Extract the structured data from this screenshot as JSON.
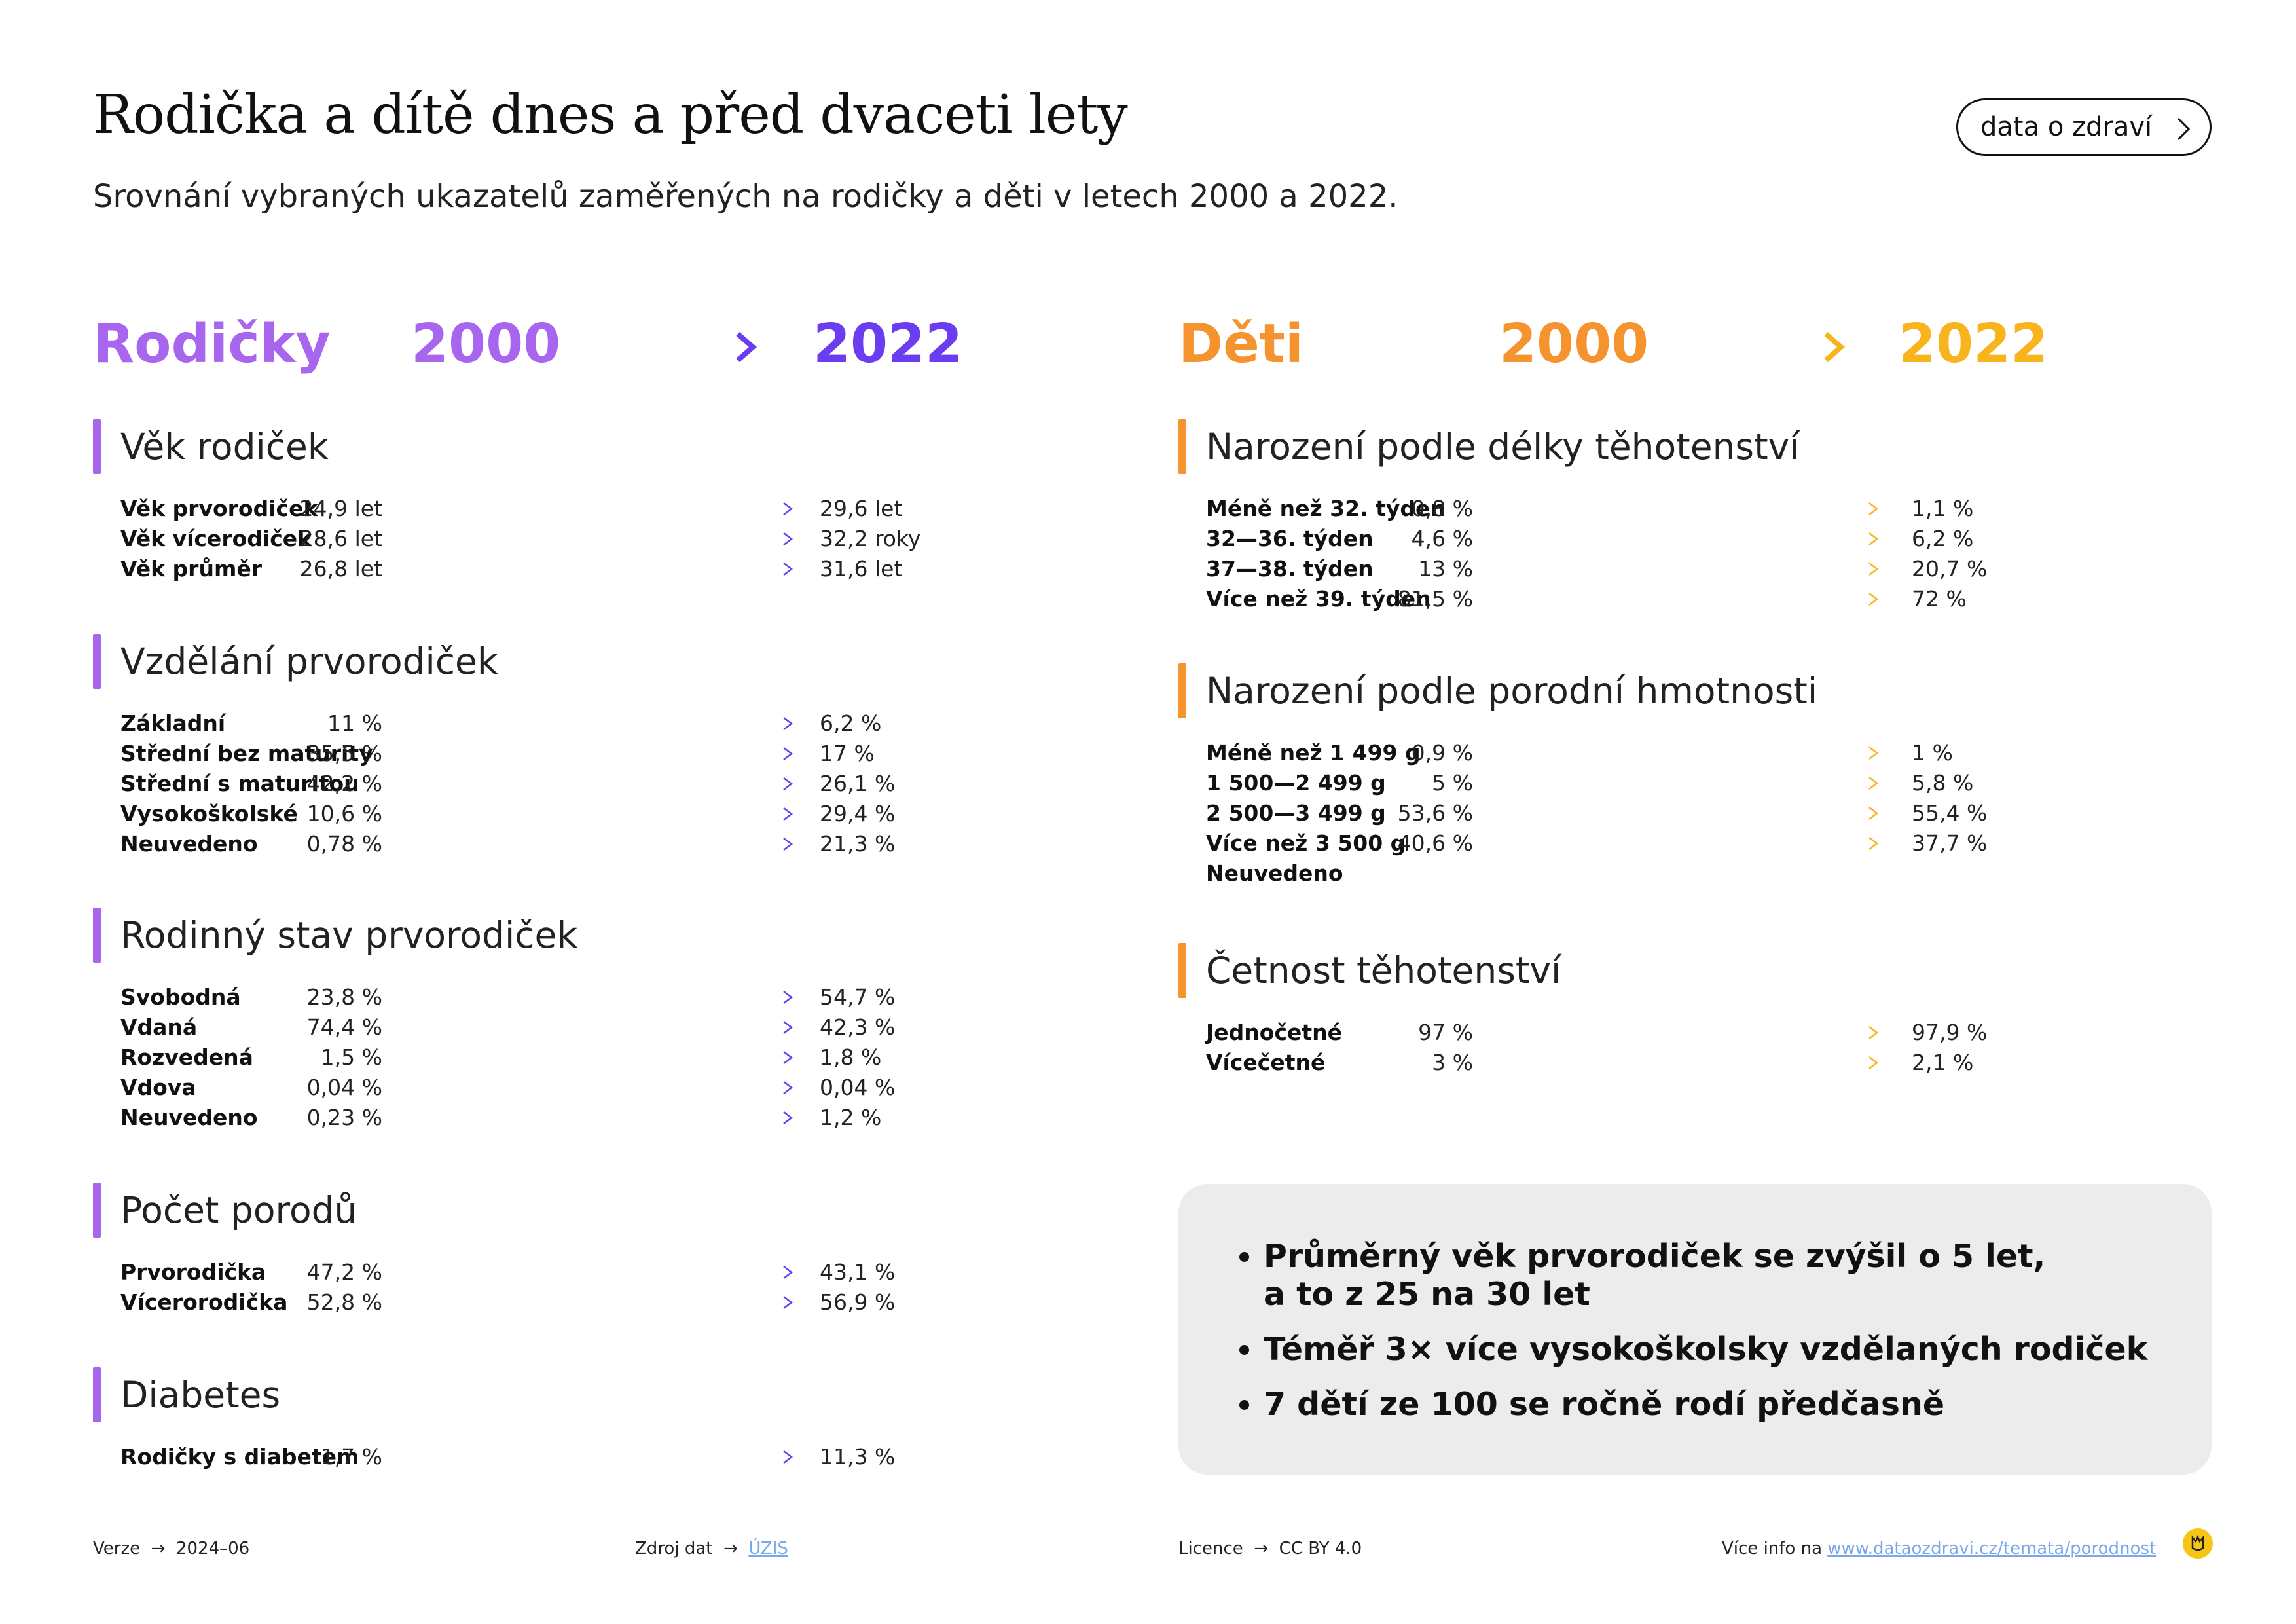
{
  "header": {
    "title": "Rodička a dítě dnes a před dvaceti lety",
    "subtitle": "Srovnání vybraných ukazatelů zaměřených na rodičky a děti v letech 2000 a 2022.",
    "button_label": "data o zdraví"
  },
  "colors": {
    "purple_light": "#a866ef",
    "purple_dark": "#6a3df0",
    "orange": "#f5932f",
    "orange_light": "#f8b41c",
    "box_bg": "#ececec"
  },
  "left_column": {
    "heading": "Rodičky",
    "year_from": "2000",
    "year_to": "2022",
    "sections": [
      {
        "title": "Věk rodiček",
        "rows": [
          {
            "label": "Věk prvorodiček",
            "v2000": "24,9 let",
            "v2022": "29,6 let"
          },
          {
            "label": "Věk vícerodiček",
            "v2000": "28,6 let",
            "v2022": "32,2 roky"
          },
          {
            "label": "Věk průměr",
            "v2000": "26,8 let",
            "v2022": "31,6 let"
          }
        ]
      },
      {
        "title": "Vzdělání prvorodiček",
        "rows": [
          {
            "label": "Základní",
            "v2000": "11 %",
            "v2022": "6,2 %"
          },
          {
            "label": "Střední bez maturity",
            "v2000": "35,5 %",
            "v2022": "17 %"
          },
          {
            "label": "Střední s maturitou",
            "v2000": "42,2 %",
            "v2022": "26,1 %"
          },
          {
            "label": "Vysokoškolské",
            "v2000": "10,6 %",
            "v2022": "29,4 %"
          },
          {
            "label": "Neuvedeno",
            "v2000": "0,78 %",
            "v2022": "21,3 %"
          }
        ]
      },
      {
        "title": "Rodinný stav prvorodiček",
        "rows": [
          {
            "label": "Svobodná",
            "v2000": "23,8 %",
            "v2022": "54,7 %"
          },
          {
            "label": "Vdaná",
            "v2000": "74,4 %",
            "v2022": "42,3 %"
          },
          {
            "label": "Rozvedená",
            "v2000": "1,5 %",
            "v2022": "1,8 %"
          },
          {
            "label": "Vdova",
            "v2000": "0,04 %",
            "v2022": "0,04 %"
          },
          {
            "label": "Neuvedeno",
            "v2000": "0,23 %",
            "v2022": "1,2 %"
          }
        ]
      },
      {
        "title": "Počet porodů",
        "rows": [
          {
            "label": "Prvorodička",
            "v2000": "47,2 %",
            "v2022": "43,1 %"
          },
          {
            "label": "Vícerorodička",
            "v2000": "52,8 %",
            "v2022": "56,9 %"
          }
        ]
      },
      {
        "title": "Diabetes",
        "rows": [
          {
            "label": "Rodičky s diabetem",
            "v2000": "1,7 %",
            "v2022": "11,3 %"
          }
        ]
      }
    ]
  },
  "right_column": {
    "heading": "Děti",
    "year_from": "2000",
    "year_to": "2022",
    "sections": [
      {
        "title": "Narození podle délky těhotenství",
        "rows": [
          {
            "label": "Méně než 32. týden",
            "v2000": "0,8 %",
            "v2022": "1,1 %"
          },
          {
            "label": "32—36. týden",
            "v2000": "4,6 %",
            "v2022": "6,2 %"
          },
          {
            "label": "37—38. týden",
            "v2000": "13 %",
            "v2022": "20,7 %"
          },
          {
            "label": "Více než 39. týden",
            "v2000": "81,5 %",
            "v2022": "72 %"
          }
        ]
      },
      {
        "title": "Narození podle porodní hmotnosti",
        "rows": [
          {
            "label": "Méně než 1 499 g",
            "v2000": "0,9 %",
            "v2022": "1 %"
          },
          {
            "label": "1 500—2 499 g",
            "v2000": "5 %",
            "v2022": "5,8 %"
          },
          {
            "label": "2 500—3 499 g",
            "v2000": "53,6 %",
            "v2022": "55,4 %"
          },
          {
            "label": "Více než 3 500 g",
            "v2000": "40,6 %",
            "v2022": "37,7 %"
          },
          {
            "label": "Neuvedeno",
            "v2000": "",
            "v2022": ""
          }
        ]
      },
      {
        "title": "Četnost těhotenství",
        "rows": [
          {
            "label": "Jednočetné",
            "v2000": "97 %",
            "v2022": "97,9 %"
          },
          {
            "label": "Vícečetné",
            "v2000": "3 %",
            "v2022": "2,1 %"
          }
        ]
      }
    ]
  },
  "summary": {
    "bullets": [
      [
        "Průměrný věk prvorodiček se zvýšil o 5 let,",
        "a to z 25 na 30 let"
      ],
      [
        "Téměř 3× více vysokoškolsky vzdělaných rodiček"
      ],
      [
        "7 dětí ze 100 se ročně rodí předčasně"
      ]
    ]
  },
  "footer": {
    "version_label": "Verze",
    "version": "2024–06",
    "source_label": "Zdroj dat",
    "source": "ÚZIS",
    "license_label": "Licence",
    "license": "CC BY 4.0",
    "more_label": "Více info na",
    "more_link": "www.dataozdravi.cz/temata/porodnost"
  }
}
